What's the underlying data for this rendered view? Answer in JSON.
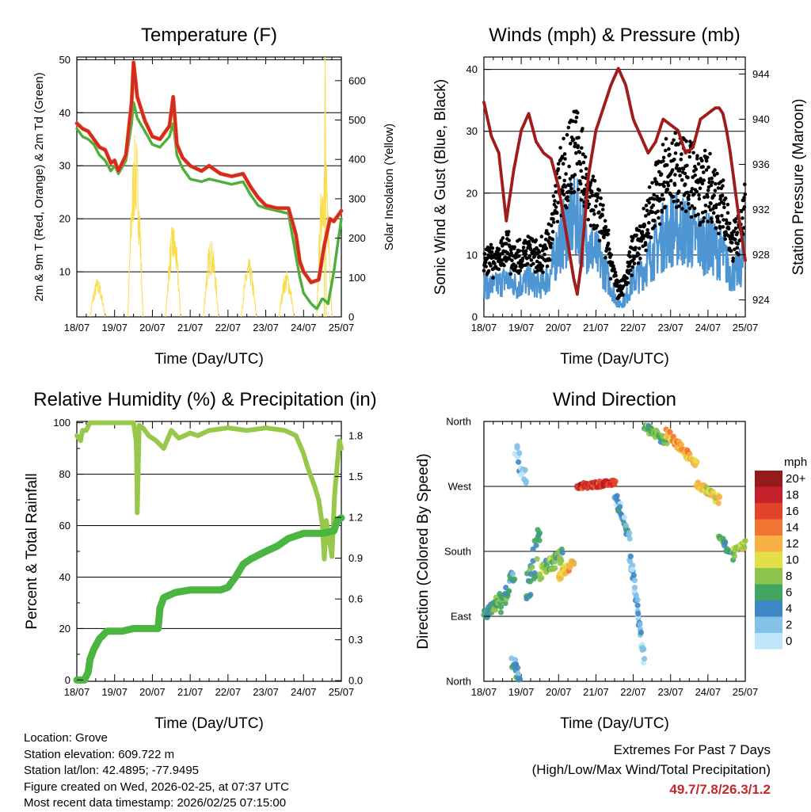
{
  "time_ticks": [
    "18/07",
    "19/07",
    "20/07",
    "21/07",
    "22/07",
    "23/07",
    "24/07",
    "25/07"
  ],
  "colors": {
    "temp_red": "#d42a27",
    "temp_orange": "#f08a24",
    "dewpoint_green": "#4daf3b",
    "insolation_yellow": "#f8de4e",
    "gust_black": "#000000",
    "wind_blue": "#4d95d3",
    "pressure_maroon": "#a11b1b",
    "rh_green": "#97c84c",
    "precip_green": "#4ab541",
    "extremes_red": "#c0282e"
  },
  "chart_data": [
    {
      "type": "line",
      "title": "Temperature (F)",
      "xlabel": "Time (Day/UTC)",
      "ylabel": "2m & 9m T (Red, Orange) & 2m Td (Green)",
      "y2label": "Solar Insolation (Yellow)",
      "xlim": [
        0,
        7
      ],
      "ylim": [
        1.5,
        50.5
      ],
      "y2lim": [
        0,
        660
      ],
      "yticks": [
        10,
        20,
        30,
        40,
        50
      ],
      "y2ticks": [
        0,
        100,
        200,
        300,
        400,
        500,
        600
      ],
      "series": [
        {
          "name": "2m T",
          "color": "red",
          "x": [
            0,
            0.15,
            0.3,
            0.45,
            0.6,
            0.75,
            0.9,
            1.0,
            1.1,
            1.3,
            1.45,
            1.5,
            1.6,
            1.8,
            2.0,
            2.2,
            2.45,
            2.55,
            2.65,
            2.8,
            3.0,
            3.3,
            3.5,
            3.8,
            4.1,
            4.4,
            4.6,
            4.8,
            5.0,
            5.3,
            5.6,
            5.8,
            5.9,
            6.0,
            6.2,
            6.4,
            6.55,
            6.7,
            6.8,
            7.0
          ],
          "y": [
            38,
            37,
            36.5,
            35,
            33.5,
            33,
            30.5,
            31,
            29,
            32,
            42,
            49.5,
            43,
            38.5,
            35.5,
            35,
            37.5,
            43,
            34,
            31.5,
            30,
            29,
            30,
            28.5,
            28,
            28.5,
            26,
            24,
            22.5,
            22,
            22,
            17,
            12,
            10,
            8,
            8.5,
            15,
            20,
            19.5,
            21.5
          ]
        },
        {
          "name": "2m Td",
          "color": "green",
          "x": [
            0,
            0.15,
            0.3,
            0.45,
            0.6,
            0.75,
            0.9,
            1.0,
            1.1,
            1.3,
            1.45,
            1.5,
            1.6,
            1.8,
            2.0,
            2.2,
            2.45,
            2.55,
            2.65,
            2.8,
            3.0,
            3.3,
            3.5,
            3.8,
            4.1,
            4.4,
            4.6,
            4.8,
            5.0,
            5.3,
            5.6,
            5.75,
            5.9,
            6.0,
            6.2,
            6.35,
            6.5,
            6.65,
            6.8,
            7.0
          ],
          "y": [
            37,
            35.5,
            35,
            34,
            32,
            31,
            29,
            30,
            28.5,
            31,
            38,
            42,
            39,
            36.5,
            34,
            33.5,
            35.5,
            38,
            32,
            29.5,
            27.5,
            27,
            27.5,
            27,
            26.5,
            27,
            24.5,
            22.5,
            22,
            21.5,
            21,
            15,
            9,
            6,
            4,
            3,
            5,
            4,
            10,
            20
          ]
        },
        {
          "name": "Solar Insolation",
          "color": "yellow",
          "axis": "y2",
          "days": [
            0,
            1,
            2,
            3,
            4,
            5,
            6
          ],
          "peak": [
            100,
            470,
            240,
            200,
            150,
            120,
            430
          ],
          "special_peak": [
            6,
            660
          ]
        }
      ]
    },
    {
      "type": "scatter+line",
      "title": "Winds (mph) & Pressure (mb)",
      "xlabel": "Time (Day/UTC)",
      "ylabel": "Sonic Wind & Gust (Blue, Black)",
      "y2label": "Station Pressure (Maroon)",
      "xlim": [
        0,
        7
      ],
      "ylim": [
        0,
        42
      ],
      "y2lim": [
        922.5,
        945.5
      ],
      "yticks": [
        0,
        10,
        20,
        30,
        40
      ],
      "y2ticks": [
        924,
        928,
        932,
        936,
        940,
        944
      ],
      "wind_envelope_x": [
        0,
        0.3,
        0.6,
        0.9,
        1.2,
        1.5,
        1.8,
        2.0,
        2.2,
        2.4,
        2.6,
        2.8,
        3.0,
        3.2,
        3.4,
        3.6,
        3.8,
        4.0,
        4.2,
        4.4,
        4.6,
        4.8,
        5.0,
        5.2,
        5.4,
        5.6,
        5.8,
        6.0,
        6.2,
        6.4,
        6.6,
        6.8,
        7.0
      ],
      "wind_envelope_y": [
        5,
        5,
        6,
        5,
        6,
        5,
        7,
        12,
        14,
        16,
        15,
        12,
        10,
        8,
        5,
        2,
        3,
        6,
        7,
        9,
        11,
        13,
        14,
        14,
        14,
        13,
        12,
        12,
        11,
        10,
        7,
        7,
        10
      ],
      "series": [
        {
          "name": "Station Pressure",
          "color": "maroon",
          "x": [
            0,
            0.2,
            0.4,
            0.6,
            0.8,
            1.0,
            1.2,
            1.4,
            1.6,
            1.8,
            2.0,
            2.2,
            2.4,
            2.5,
            2.6,
            2.8,
            3.0,
            3.2,
            3.4,
            3.6,
            3.8,
            4.0,
            4.2,
            4.4,
            4.6,
            4.8,
            5.0,
            5.2,
            5.4,
            5.6,
            5.8,
            6.0,
            6.2,
            6.3,
            6.4,
            6.5,
            6.6,
            6.8,
            7.0
          ],
          "y": [
            941.5,
            938.5,
            937,
            931,
            935.5,
            939,
            940.5,
            938,
            937,
            936.5,
            934,
            930,
            926,
            924.5,
            927,
            935,
            939,
            941,
            943,
            944.5,
            943,
            940,
            938.5,
            937,
            938,
            940,
            939.5,
            939,
            937,
            937.5,
            940,
            940.5,
            941,
            941,
            940.5,
            939,
            937,
            932,
            927.5
          ]
        }
      ]
    },
    {
      "type": "line",
      "title": "Relative Humidity (%) & Precipitation (in)",
      "xlabel": "Time (Day/UTC)",
      "ylabel": "Percent & Total Rainfall",
      "xlim": [
        0,
        7
      ],
      "ylim": [
        -0.5,
        100.5
      ],
      "y2lim": [
        -0.005,
        1.905
      ],
      "yticks": [
        0,
        20,
        40,
        60,
        80,
        100
      ],
      "y2ticks": [
        "0.0",
        "0.3",
        "0.6",
        "0.9",
        "1.2",
        "1.5",
        "1.8"
      ],
      "series": [
        {
          "name": "Relative Humidity",
          "color": "rh_green",
          "x": [
            0,
            0.1,
            0.15,
            0.25,
            0.35,
            0.4,
            0.5,
            1.0,
            1.5,
            1.58,
            1.6,
            1.65,
            1.75,
            1.9,
            2.1,
            2.3,
            2.5,
            2.7,
            3.0,
            3.2,
            3.5,
            4.0,
            4.5,
            5.0,
            5.5,
            5.8,
            6.0,
            6.1,
            6.3,
            6.4,
            6.5,
            6.55,
            6.6,
            6.75,
            6.82,
            6.95,
            7.0
          ],
          "y": [
            95,
            93,
            97,
            97,
            100,
            100,
            100,
            100,
            100,
            92,
            65,
            99,
            98,
            95,
            93,
            90,
            97,
            94,
            96,
            95,
            97,
            98,
            97,
            98,
            97,
            95,
            88,
            83,
            75,
            70,
            60,
            47,
            62,
            48,
            72,
            93,
            90
          ]
        },
        {
          "name": "Total Precipitation",
          "color": "precip_green",
          "x": [
            0,
            0.2,
            0.3,
            0.35,
            0.45,
            0.6,
            0.8,
            1.0,
            1.2,
            1.5,
            2.0,
            2.15,
            2.2,
            2.3,
            2.6,
            3.0,
            3.5,
            3.8,
            4.0,
            4.2,
            4.4,
            4.6,
            5.0,
            5.3,
            5.6,
            6.0,
            6.5,
            6.8,
            6.9,
            7.0
          ],
          "y": [
            0,
            0,
            3,
            8,
            12,
            16,
            19,
            19,
            19,
            20,
            20,
            20,
            28,
            32,
            34,
            35,
            35,
            35,
            36,
            40,
            45,
            47,
            50,
            52,
            55,
            57,
            57,
            58,
            62,
            63
          ]
        }
      ]
    },
    {
      "type": "scatter",
      "title": "Wind Direction",
      "xlabel": "Time (Day/UTC)",
      "ylabel": "Direction (Colored By Speed)",
      "xlim": [
        0,
        7
      ],
      "ylim": [
        0,
        360
      ],
      "ytick_values": [
        0,
        90,
        180,
        270,
        360
      ],
      "ytick_labels": [
        "North",
        "East",
        "South",
        "West",
        "North"
      ],
      "legend_title": "mph",
      "legend_labels": [
        "0",
        "2",
        "4",
        "6",
        "8",
        "10",
        "12",
        "14",
        "16",
        "18",
        "20+"
      ],
      "legend_colors": [
        "#bfe6f8",
        "#83c1e8",
        "#3f87c4",
        "#43a562",
        "#8dc44e",
        "#e3e047",
        "#f9b143",
        "#f07532",
        "#e4432b",
        "#c4212a",
        "#951a1b"
      ],
      "segments": [
        {
          "t0": 0.0,
          "t1": 0.45,
          "d0": 90,
          "d1": 115,
          "spd": 6,
          "n": 40,
          "sp": 14
        },
        {
          "t0": 0.45,
          "t1": 0.8,
          "d0": 100,
          "d1": 150,
          "spd": 5,
          "n": 20,
          "sp": 20
        },
        {
          "t0": 0.75,
          "t1": 0.95,
          "d0": 30,
          "d1": 10,
          "spd": 4,
          "n": 16,
          "sp": 25
        },
        {
          "t0": 0.85,
          "t1": 1.15,
          "d0": 320,
          "d1": 280,
          "spd": 2,
          "n": 18,
          "sp": 30
        },
        {
          "t0": 1.15,
          "t1": 1.5,
          "d0": 120,
          "d1": 200,
          "spd": 5,
          "n": 25,
          "sp": 50
        },
        {
          "t0": 1.5,
          "t1": 2.1,
          "d0": 150,
          "d1": 175,
          "spd": 7,
          "n": 40,
          "sp": 20
        },
        {
          "t0": 2.0,
          "t1": 2.4,
          "d0": 145,
          "d1": 165,
          "spd": 11,
          "n": 30,
          "sp": 12
        },
        {
          "t0": 2.5,
          "t1": 3.5,
          "d0": 270,
          "d1": 275,
          "spd": 17,
          "n": 70,
          "sp": 8
        },
        {
          "t0": 3.5,
          "t1": 3.9,
          "d0": 260,
          "d1": 200,
          "spd": 3,
          "n": 30,
          "sp": 15
        },
        {
          "t0": 3.9,
          "t1": 4.3,
          "d0": 180,
          "d1": 30,
          "spd": 2,
          "n": 40,
          "sp": 20
        },
        {
          "t0": 4.3,
          "t1": 4.9,
          "d0": 355,
          "d1": 330,
          "spd": 7,
          "n": 45,
          "sp": 12
        },
        {
          "t0": 4.9,
          "t1": 5.7,
          "d0": 345,
          "d1": 300,
          "spd": 12,
          "n": 55,
          "sp": 12
        },
        {
          "t0": 5.7,
          "t1": 6.3,
          "d0": 275,
          "d1": 250,
          "spd": 10,
          "n": 40,
          "sp": 12
        },
        {
          "t0": 6.3,
          "t1": 6.7,
          "d0": 200,
          "d1": 170,
          "spd": 6,
          "n": 20,
          "sp": 12
        },
        {
          "t0": 6.7,
          "t1": 7.0,
          "d0": 180,
          "d1": 190,
          "spd": 9,
          "n": 16,
          "sp": 10
        }
      ]
    }
  ],
  "info": {
    "location": "Location: Grove",
    "elevation": "Station elevation: 609.722 m",
    "latlon": "Station lat/lon: 42.4895; -77.9495",
    "created": "Figure created on Wed, 2026-02-25, at 07:37 UTC",
    "recent": "Most recent data timestamp: 2026/02/25 07:15:00"
  },
  "extremes": {
    "line1": "Extremes For Past 7 Days",
    "line2": "(High/Low/Max Wind/Total Precipitation)",
    "values": "49.7/7.8/26.3/1.2"
  }
}
